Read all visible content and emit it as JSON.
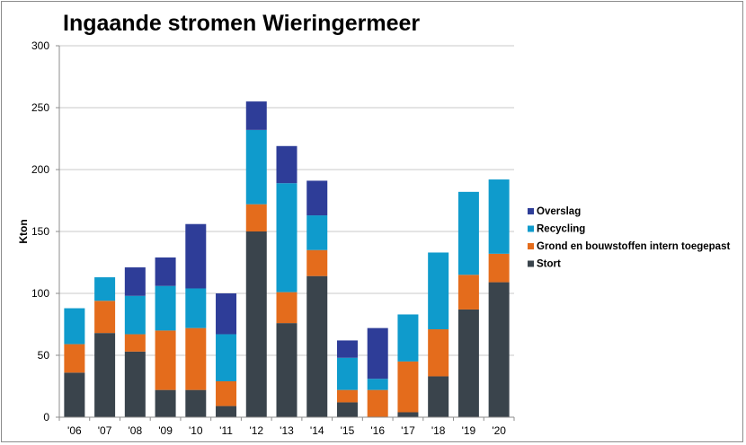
{
  "chart_data": {
    "type": "bar",
    "stacked": true,
    "title": "Ingaande stromen Wieringermeer",
    "xlabel": "",
    "ylabel": "Kton",
    "ylim": [
      0,
      300
    ],
    "yticks": [
      0,
      50,
      100,
      150,
      200,
      250,
      300
    ],
    "grid": true,
    "legend_position": "right",
    "categories": [
      "'06",
      "'07",
      "'08",
      "'09",
      "'10",
      "'11",
      "'12",
      "'13",
      "'14",
      "'15",
      "'16",
      "'17",
      "'18",
      "'19",
      "'20"
    ],
    "series": [
      {
        "name": "Stort",
        "color": "#3a444c",
        "values": [
          36,
          68,
          53,
          22,
          22,
          9,
          150,
          76,
          114,
          12,
          0,
          4,
          33,
          87,
          109
        ]
      },
      {
        "name": "Grond en bouwstoffen intern toegepast",
        "color": "#e46c1c",
        "values": [
          23,
          26,
          14,
          48,
          50,
          20,
          22,
          25,
          21,
          10,
          22,
          41,
          38,
          28,
          23
        ]
      },
      {
        "name": "Recycling",
        "color": "#0f9bcc",
        "values": [
          29,
          19,
          31,
          36,
          32,
          38,
          60,
          88,
          28,
          26,
          9,
          38,
          62,
          67,
          60
        ]
      },
      {
        "name": "Overslag",
        "color": "#2e3d98",
        "values": [
          0,
          0,
          23,
          23,
          52,
          33,
          23,
          30,
          28,
          14,
          41,
          0,
          0,
          0,
          0
        ]
      }
    ],
    "legend_order": [
      "Overslag",
      "Recycling",
      "Grond en bouwstoffen intern toegepast",
      "Stort"
    ]
  }
}
